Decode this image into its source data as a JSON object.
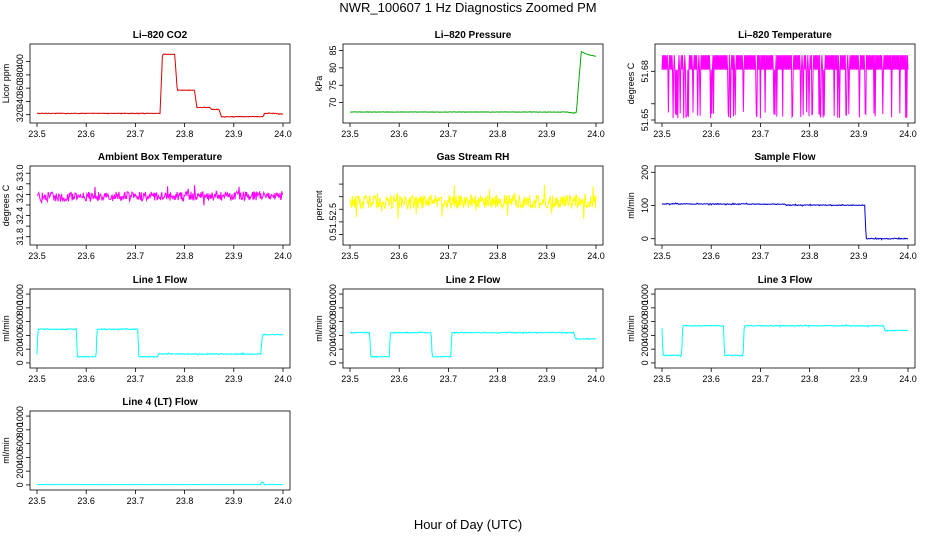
{
  "figure": {
    "title": "NWR_100607  1 Hz Diagnostics Zoomed PM",
    "x_title": "Hour of Day (UTC)",
    "x_ticks": [
      23.5,
      23.6,
      23.7,
      23.8,
      23.9,
      24.0
    ],
    "x_tick_labels": [
      "23.5",
      "23.6",
      "23.7",
      "23.8",
      "23.9",
      "24.0"
    ],
    "xlim": [
      23.5,
      24.0
    ]
  },
  "chart_data": [
    {
      "type": "line",
      "title": "Li–820 CO2",
      "ylabel": "Licor ppm",
      "ylim": [
        312,
        422
      ],
      "yticks": [
        320,
        340,
        360,
        380,
        400
      ],
      "color": "#dd0000",
      "noise": 0.4,
      "series": [
        {
          "x": [
            23.5,
            23.75,
            23.755,
            23.78,
            23.785,
            23.82,
            23.825,
            23.85,
            23.855,
            23.87,
            23.875,
            23.96,
            23.962,
            23.985,
            23.99,
            24.0
          ],
          "y": [
            322,
            322,
            411,
            411,
            357,
            357,
            331,
            331,
            328,
            328,
            317,
            317,
            322,
            322,
            321,
            321
          ]
        }
      ]
    },
    {
      "type": "line",
      "title": "Li–820 Pressure",
      "ylabel": "kPa",
      "ylim": [
        65,
        86
      ],
      "yticks": [
        70,
        75,
        80,
        85
      ],
      "color": "#00aa00",
      "noise": 0.05,
      "series": [
        {
          "x": [
            23.5,
            23.94,
            23.955,
            23.96,
            23.97,
            23.98,
            24.0
          ],
          "y": [
            67.3,
            67.3,
            67.0,
            67.1,
            84.7,
            84.0,
            83.3
          ]
        }
      ]
    },
    {
      "type": "line",
      "title": "Li–820 Temperature",
      "ylabel": "degrees C",
      "ylim": [
        51.65,
        51.695
      ],
      "yticks": [
        51.65,
        51.66,
        51.68
      ],
      "ytick_labels": [
        "51.65",
        "",
        "51.68"
      ],
      "color": "#ff00ff",
      "noise": 0,
      "dense": {
        "levels": [
          51.681,
          51.69
        ],
        "low": 51.651,
        "density": 0.12
      },
      "series": [
        {
          "x": [
            23.5,
            24.0
          ],
          "y": [
            51.685,
            51.685
          ]
        }
      ]
    },
    {
      "type": "line",
      "title": "Ambient Box Temperature",
      "ylabel": "degrees C",
      "ylim": [
        31.7,
        33.08
      ],
      "yticks": [
        31.8,
        32.0,
        32.2,
        32.4,
        32.6,
        32.8,
        33.0
      ],
      "ytick_labels": [
        "31.8",
        "",
        "32.4",
        "",
        "32.6",
        "",
        "33.0"
      ],
      "color": "#ff00ff",
      "noise": 0.09,
      "series": [
        {
          "x": [
            23.5,
            24.0
          ],
          "y": [
            32.55,
            32.58
          ]
        }
      ]
    },
    {
      "type": "line",
      "title": "Gas Stream RH",
      "ylabel": "percent",
      "ylim": [
        0.2,
        3.1
      ],
      "yticks": [
        0.5,
        1.0,
        1.5,
        2.0,
        2.5
      ],
      "ytick_labels": [
        "0.5",
        "1.5",
        "2.5",
        "",
        ""
      ],
      "color": "#ffff00",
      "noise": 0.28,
      "series": [
        {
          "x": [
            23.5,
            24.0
          ],
          "y": [
            1.8,
            1.8
          ]
        }
      ]
    },
    {
      "type": "line",
      "title": "Sample Flow",
      "ylabel": "ml/min",
      "ylim": [
        -10,
        210
      ],
      "yticks": [
        0,
        100,
        200
      ],
      "color": "#0000cc",
      "noise": 1.2,
      "series": [
        {
          "x": [
            23.5,
            23.75,
            23.752,
            23.912,
            23.915,
            24.0
          ],
          "y": [
            105,
            104,
            101,
            101,
            0,
            0
          ]
        }
      ]
    },
    {
      "type": "line",
      "title": "Line 1 Flow",
      "ylabel": "ml/min",
      "ylim": [
        -30,
        1030
      ],
      "yticks": [
        0,
        200,
        400,
        600,
        800,
        1000
      ],
      "color": "#00ffff",
      "noise": 6,
      "series": [
        {
          "x": [
            23.5,
            23.502,
            23.58,
            23.582,
            23.62,
            23.622,
            23.705,
            23.707,
            23.745,
            23.747,
            23.955,
            23.958,
            24.0
          ],
          "y": [
            120,
            490,
            490,
            90,
            90,
            490,
            490,
            90,
            90,
            130,
            130,
            410,
            410
          ]
        }
      ]
    },
    {
      "type": "line",
      "title": "Line 2 Flow",
      "ylabel": "ml/min",
      "ylim": [
        -30,
        1030
      ],
      "yticks": [
        0,
        200,
        400,
        600,
        800,
        1000
      ],
      "color": "#00ffff",
      "noise": 6,
      "series": [
        {
          "x": [
            23.5,
            23.54,
            23.542,
            23.58,
            23.582,
            23.665,
            23.667,
            23.705,
            23.707,
            23.955,
            23.958,
            24.0
          ],
          "y": [
            440,
            440,
            90,
            90,
            440,
            440,
            90,
            90,
            440,
            440,
            350,
            350
          ]
        }
      ]
    },
    {
      "type": "line",
      "title": "Line 3 Flow",
      "ylabel": "ml/min",
      "ylim": [
        -30,
        1030
      ],
      "yticks": [
        0,
        200,
        400,
        600,
        800,
        1000
      ],
      "color": "#00ffff",
      "noise": 6,
      "series": [
        {
          "x": [
            23.5,
            23.502,
            23.54,
            23.542,
            23.625,
            23.627,
            23.665,
            23.667,
            23.95,
            23.953,
            24.0
          ],
          "y": [
            500,
            110,
            110,
            540,
            540,
            110,
            110,
            540,
            540,
            470,
            470
          ]
        }
      ]
    },
    {
      "type": "line",
      "title": "Line 4 (LT) Flow",
      "ylabel": "ml/min",
      "ylim": [
        -30,
        1030
      ],
      "yticks": [
        0,
        200,
        400,
        600,
        800,
        1000
      ],
      "color": "#00ffff",
      "noise": 1,
      "series": [
        {
          "x": [
            23.5,
            23.955,
            23.957,
            23.96,
            23.962,
            24.0
          ],
          "y": [
            5,
            5,
            40,
            40,
            5,
            5
          ]
        }
      ]
    }
  ]
}
